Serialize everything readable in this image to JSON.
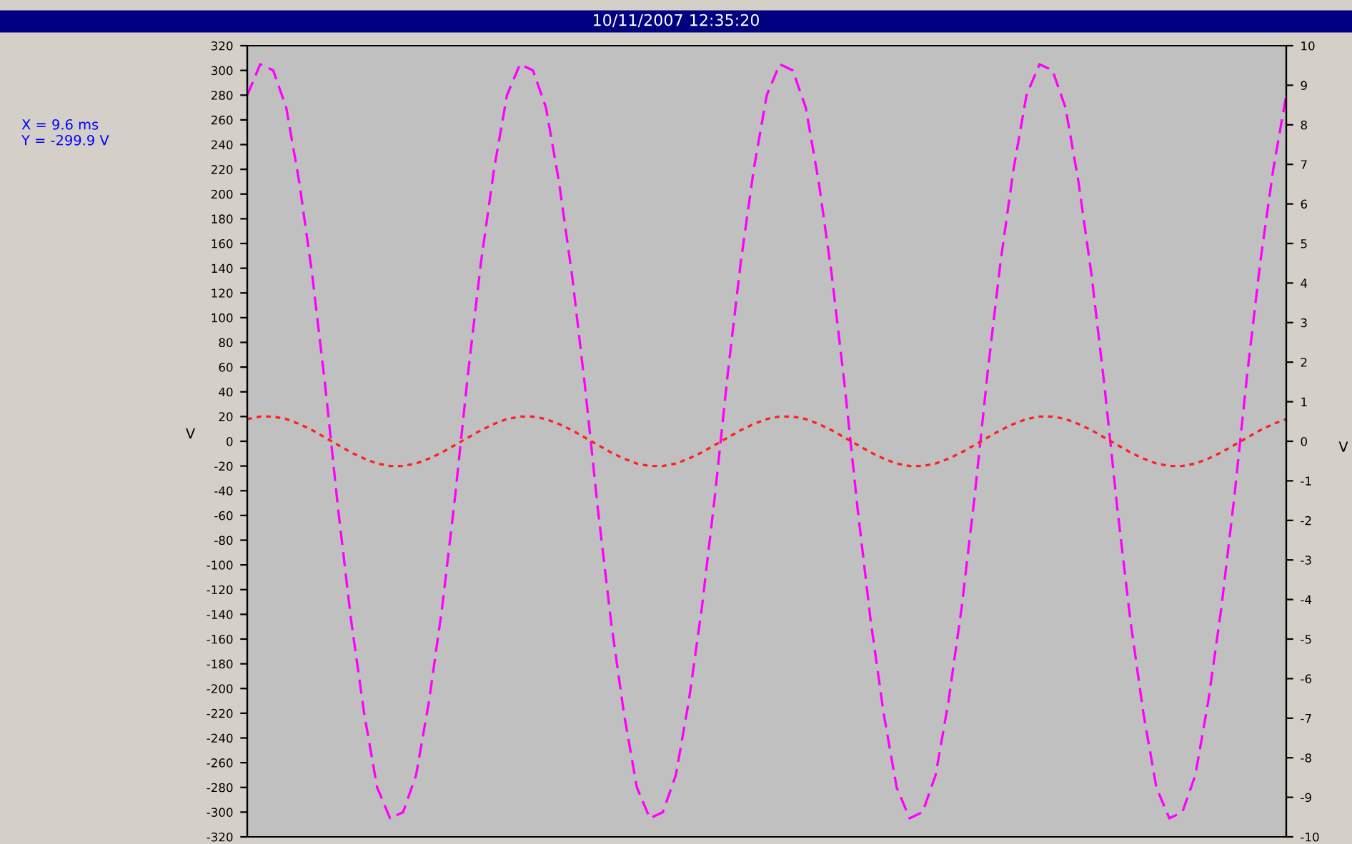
{
  "chart_data": {
    "type": "line",
    "title": "10/11/2007 12:35:20",
    "ylabel": "V",
    "y2label": "V",
    "annotations": [
      "X = 9.6 ms",
      "Y = -299.9 V"
    ],
    "categories": [
      null,
      null,
      null,
      null,
      null,
      null,
      null,
      null,
      null,
      null,
      null,
      null,
      null,
      null,
      null,
      null,
      null,
      null,
      null,
      null,
      null,
      null,
      null,
      null,
      null,
      null,
      null,
      null,
      null,
      null,
      null,
      null,
      null,
      null,
      null,
      null,
      null,
      null,
      null,
      null,
      null,
      null,
      null,
      null,
      null,
      null,
      null,
      null,
      null,
      null,
      null,
      null,
      null,
      null,
      null,
      null,
      null,
      null,
      null,
      null,
      null,
      null,
      null,
      null,
      null,
      null,
      null,
      null,
      null,
      null,
      null,
      null,
      null,
      null,
      null,
      null,
      null,
      null,
      null,
      null,
      null
    ],
    "series": [
      {
        "color": "#ff00ff",
        "line_style": "dashed",
        "values": [
          280,
          305,
          300,
          270,
          210,
          135,
          45,
          -55,
          -145,
          -220,
          -280,
          -305,
          -300,
          -270,
          -210,
          -135,
          -45,
          55,
          145,
          220,
          280,
          305,
          300,
          270,
          210,
          135,
          45,
          -55,
          -145,
          -220,
          -280,
          -305,
          -300,
          -270,
          -210,
          -135,
          -45,
          55,
          145,
          220,
          280,
          305,
          300,
          270,
          210,
          135,
          45,
          -55,
          -145,
          -220,
          -280,
          -305,
          -300,
          -270,
          -210,
          -135,
          -45,
          55,
          145,
          220,
          280,
          305,
          300,
          270,
          210,
          135,
          45,
          -55,
          -145,
          -220,
          -280,
          -305,
          -300,
          -270,
          -210,
          -135,
          -45,
          55,
          145,
          220,
          280
        ]
      },
      {
        "color": "#ff2020",
        "line_style": "dotted",
        "values": [
          18,
          20,
          20,
          18,
          14,
          9,
          3,
          -3,
          -9,
          -14,
          -18,
          -20,
          -20,
          -18,
          -14,
          -9,
          -3,
          3,
          9,
          14,
          18,
          20,
          20,
          18,
          14,
          9,
          3,
          -3,
          -9,
          -14,
          -18,
          -20,
          -20,
          -18,
          -14,
          -9,
          -3,
          3,
          9,
          14,
          18,
          20,
          20,
          18,
          14,
          9,
          3,
          -3,
          -9,
          -14,
          -18,
          -20,
          -20,
          -18,
          -14,
          -9,
          -3,
          3,
          9,
          14,
          18,
          20,
          20,
          18,
          14,
          9,
          3,
          -3,
          -9,
          -14,
          -18,
          -20,
          -20,
          -18,
          -14,
          -9,
          -3,
          3,
          9,
          14,
          18
        ]
      }
    ],
    "ylim": [
      -320,
      320
    ],
    "yticks": [
      -320,
      -300,
      -280,
      -260,
      -240,
      -220,
      -200,
      -180,
      -160,
      -140,
      -120,
      -100,
      -80,
      -60,
      -40,
      -20,
      0,
      20,
      40,
      60,
      80,
      100,
      120,
      140,
      160,
      180,
      200,
      220,
      240,
      260,
      280,
      300,
      320
    ],
    "y2lim": [
      -10,
      10
    ],
    "y2ticks": [
      -10,
      -9,
      -8,
      -7,
      -6,
      -5,
      -4,
      -3,
      -2,
      -1,
      0,
      1,
      2,
      3,
      4,
      5,
      6,
      7,
      8,
      9,
      10
    ],
    "tick_labels": "y",
    "grid": false,
    "legend": false,
    "marker": "none"
  }
}
